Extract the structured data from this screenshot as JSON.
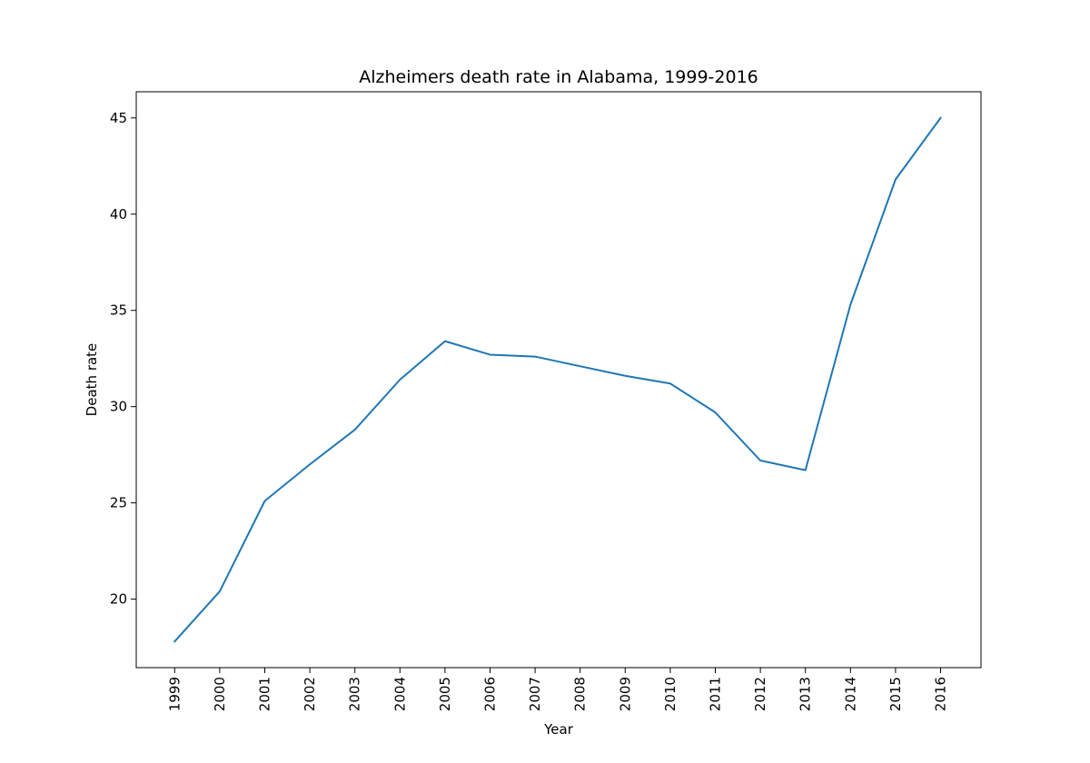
{
  "chart_data": {
    "type": "line",
    "title": "Alzheimers death rate in Alabama, 1999-2016",
    "xlabel": "Year",
    "ylabel": "Death rate",
    "categories": [
      "1999",
      "2000",
      "2001",
      "2002",
      "2003",
      "2004",
      "2005",
      "2006",
      "2007",
      "2008",
      "2009",
      "2010",
      "2011",
      "2012",
      "2013",
      "2014",
      "2015",
      "2016"
    ],
    "series": [
      {
        "values": [
          17.8,
          20.4,
          25.1,
          27.0,
          28.8,
          31.4,
          33.4,
          32.7,
          32.6,
          32.1,
          31.6,
          31.2,
          29.7,
          27.2,
          26.7,
          35.3,
          41.8,
          45.0
        ],
        "color": "#1f77b4"
      }
    ],
    "ylim": [
      16.44,
      46.36
    ],
    "yticks": [
      20,
      25,
      30,
      35,
      40,
      45
    ],
    "grid": false,
    "legend": "none"
  }
}
